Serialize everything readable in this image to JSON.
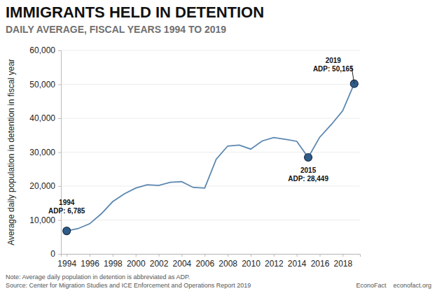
{
  "chart_data": {
    "type": "line",
    "title": "IMMIGRANTS HELD IN DETENTION",
    "subtitle": "DAILY AVERAGE, FISCAL YEARS 1994 TO 2019",
    "y_label": "Average daily population in detention in fiscal year",
    "note": "Note: Average daily population in detention is abbreviated as ADP.",
    "source": "Source: Center for Migration Studies and ICE Enforcement and Operations Report 2019",
    "credit": "EconoFact    econofact.org",
    "x": [
      1994,
      1995,
      1996,
      1997,
      1998,
      1999,
      2000,
      2001,
      2002,
      2003,
      2004,
      2005,
      2006,
      2007,
      2008,
      2009,
      2010,
      2011,
      2012,
      2013,
      2014,
      2015,
      2016,
      2017,
      2018,
      2019
    ],
    "values": [
      6785,
      7475,
      8900,
      11800,
      15400,
      17700,
      19400,
      20400,
      20200,
      21100,
      21300,
      19600,
      19400,
      27900,
      31800,
      32100,
      30900,
      33300,
      34300,
      33800,
      33200,
      28449,
      34400,
      38100,
      42200,
      50165
    ],
    "color": "#5b87b0",
    "marker": "circle",
    "xlim": [
      1993.5,
      2019.5
    ],
    "xticks": [
      1994,
      1996,
      1998,
      2000,
      2002,
      2004,
      2006,
      2008,
      2010,
      2012,
      2014,
      2016,
      2018
    ],
    "ylim": [
      0,
      60000
    ],
    "yticks": [
      0,
      {
        "value": 10000,
        "label": "10,000"
      },
      {
        "value": 20000,
        "label": "20,000"
      },
      {
        "value": 30000,
        "label": "30,000"
      },
      {
        "value": 40000,
        "label": "40,000"
      },
      {
        "value": 50000,
        "label": "50,000"
      },
      {
        "value": 60000,
        "label": "60,000"
      }
    ],
    "grid": true,
    "annotations": [
      {
        "x": 1994,
        "y": 6785,
        "lines": [
          "1994",
          "ADP: 6,785"
        ]
      },
      {
        "x": 2015,
        "y": 28449,
        "lines": [
          "2015",
          "ADP: 28,449"
        ]
      },
      {
        "x": 2019,
        "y": 50165,
        "lines": [
          "2019",
          "ADP: 50,165"
        ]
      }
    ]
  }
}
